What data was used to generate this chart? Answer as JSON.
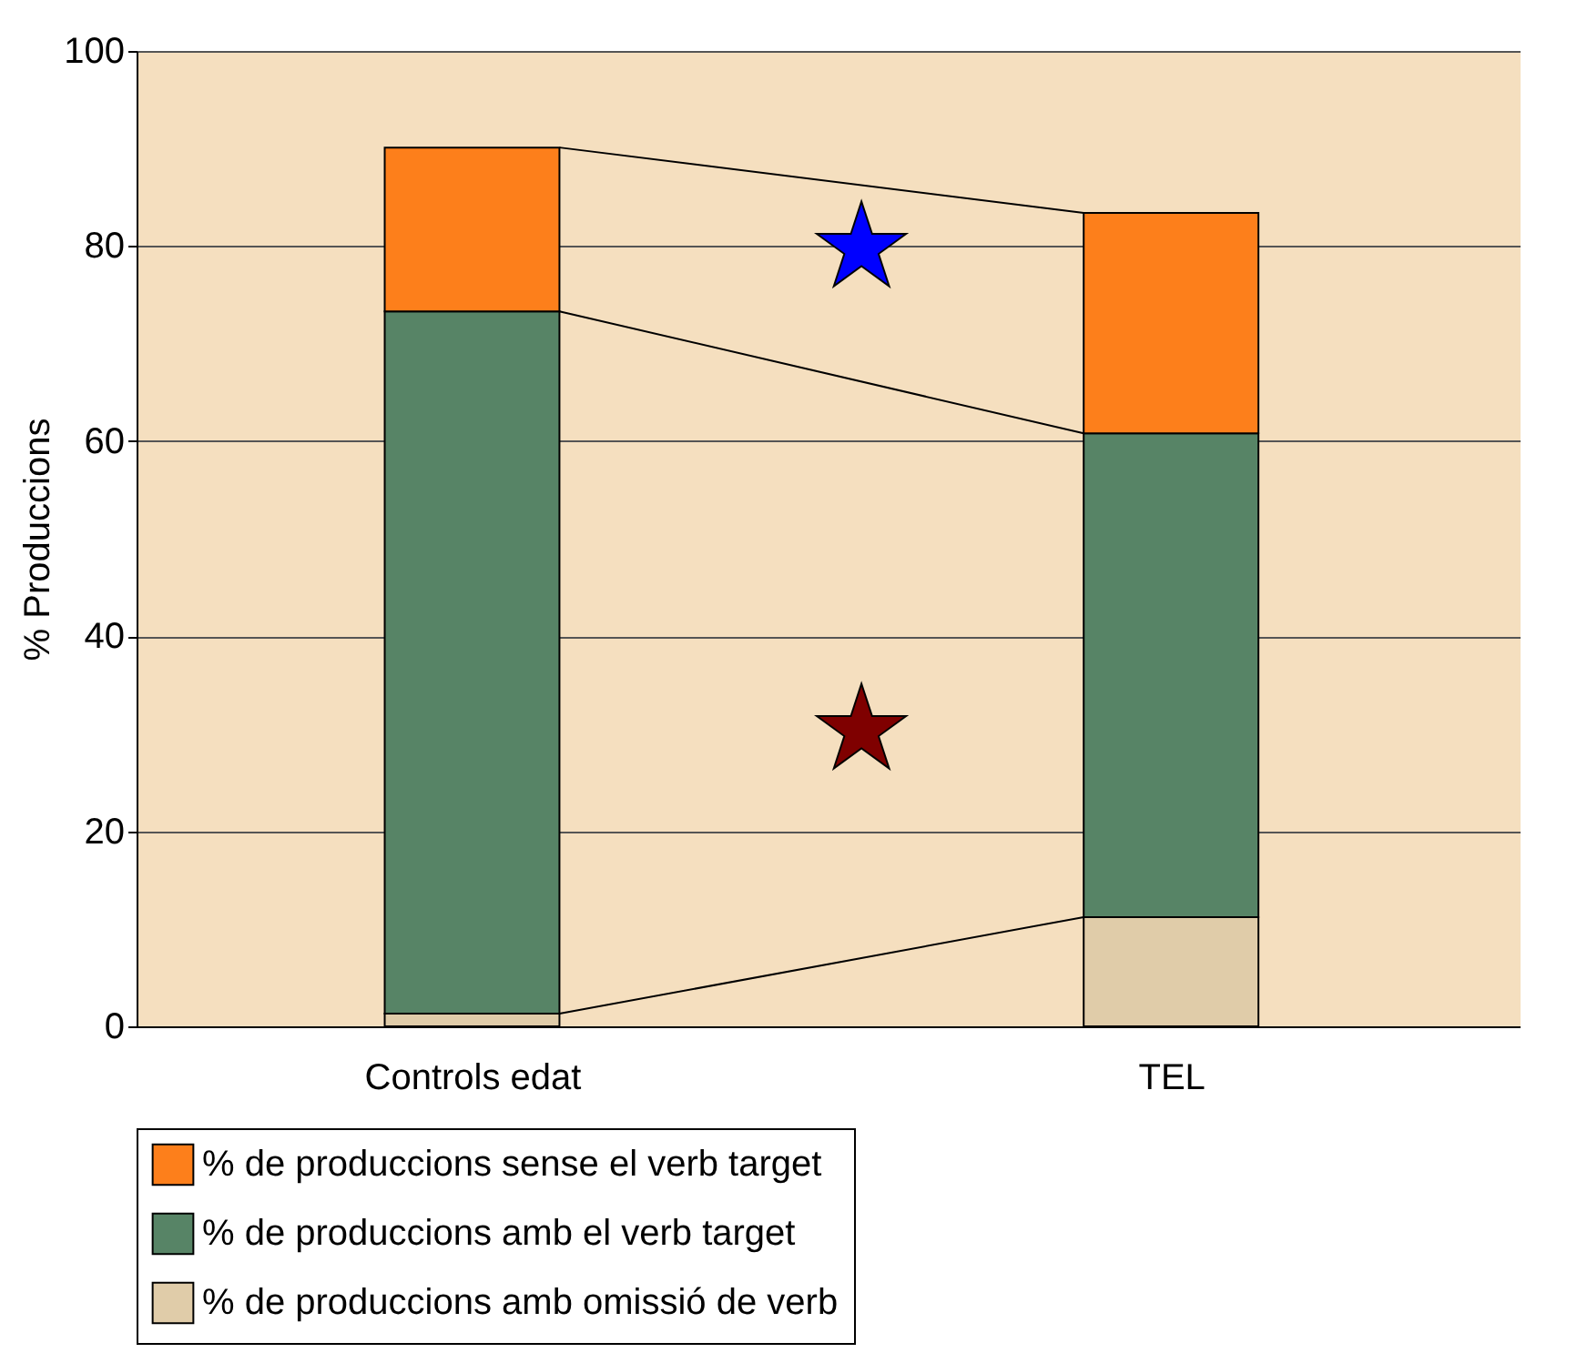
{
  "chart_data": {
    "type": "bar",
    "stacked": true,
    "ylabel": "% Produccions",
    "categories": [
      "Controls edat",
      "TEL"
    ],
    "series": [
      {
        "name": "% de produccions amb omissió de verb",
        "color": "#e0cca9",
        "values": [
          1.3,
          11.2
        ]
      },
      {
        "name": "% de produccions amb el verb target",
        "color": "#578466",
        "values": [
          72.0,
          49.6
        ]
      },
      {
        "name": "% de produccions sense el verb target",
        "color": "#fd7f1b",
        "values": [
          16.8,
          22.6
        ]
      }
    ],
    "ylim": [
      0,
      100
    ],
    "yticks": [
      0,
      20,
      40,
      60,
      80,
      100
    ],
    "grid": "y",
    "legend": "bottom",
    "annotations": [
      "★",
      "★"
    ]
  }
}
